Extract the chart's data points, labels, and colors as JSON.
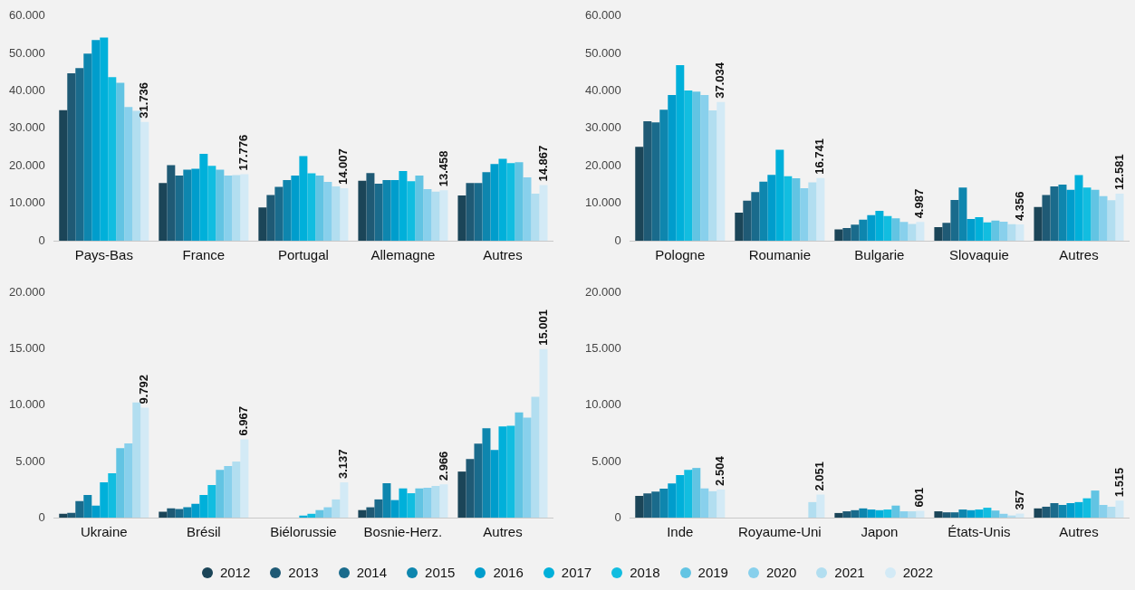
{
  "chart_data": [
    {
      "type": "bar",
      "categories": [
        "Pays-Bas",
        "France",
        "Portugal",
        "Allemagne",
        "Autres"
      ],
      "ylim": [
        0,
        60000
      ],
      "yticks": [
        {
          "value": 0,
          "label": "0"
        },
        {
          "value": 10000,
          "label": "10.000"
        },
        {
          "value": 20000,
          "label": "20.000"
        },
        {
          "value": 30000,
          "label": "30.000"
        },
        {
          "value": 40000,
          "label": "40.000"
        },
        {
          "value": 50000,
          "label": "50.000"
        },
        {
          "value": 60000,
          "label": "60.000"
        }
      ],
      "grid": false,
      "legend": "bottom",
      "series": [
        {
          "name": "2012",
          "color": "#1b4558",
          "values": [
            34900,
            15400,
            8900,
            16000,
            12100
          ]
        },
        {
          "name": "2013",
          "color": "#1f5a75",
          "values": [
            44700,
            20200,
            12200,
            18100,
            15400
          ]
        },
        {
          "name": "2014",
          "color": "#1a6b8c",
          "values": [
            46100,
            17400,
            14400,
            15200,
            15400
          ]
        },
        {
          "name": "2015",
          "color": "#0e86ae",
          "values": [
            50000,
            19000,
            16200,
            16200,
            18300
          ]
        },
        {
          "name": "2016",
          "color": "#009dcc",
          "values": [
            53600,
            19200,
            17400,
            16200,
            20500
          ]
        },
        {
          "name": "2017",
          "color": "#00b0da",
          "values": [
            54300,
            23200,
            22600,
            18600,
            21900
          ]
        },
        {
          "name": "2018",
          "color": "#12bde0",
          "values": [
            43700,
            20000,
            18000,
            15900,
            20700
          ]
        },
        {
          "name": "2019",
          "color": "#62c4e3",
          "values": [
            42200,
            19000,
            17400,
            17400,
            21000
          ]
        },
        {
          "name": "2020",
          "color": "#88d0ec",
          "values": [
            35700,
            17400,
            15700,
            13800,
            16900
          ]
        },
        {
          "name": "2021",
          "color": "#b2def0",
          "values": [
            34700,
            17500,
            14500,
            13100,
            12600
          ]
        },
        {
          "name": "2022",
          "color": "#d3eaf6",
          "values": [
            31736,
            17776,
            14007,
            13458,
            14867
          ],
          "value_labels": [
            "31.736",
            "17.776",
            "14.007",
            "13.458",
            "14.867"
          ]
        }
      ]
    },
    {
      "type": "bar",
      "categories": [
        "Pologne",
        "Roumanie",
        "Bulgarie",
        "Slovaquie",
        "Autres"
      ],
      "ylim": [
        0,
        60000
      ],
      "yticks": [
        {
          "value": 0,
          "label": "0"
        },
        {
          "value": 10000,
          "label": "10.000"
        },
        {
          "value": 20000,
          "label": "20.000"
        },
        {
          "value": 30000,
          "label": "30.000"
        },
        {
          "value": 40000,
          "label": "40.000"
        },
        {
          "value": 50000,
          "label": "50.000"
        },
        {
          "value": 60000,
          "label": "60.000"
        }
      ],
      "grid": false,
      "legend": "bottom",
      "series": [
        {
          "name": "2012",
          "color": "#1b4558",
          "values": [
            25100,
            7500,
            3000,
            3600,
            9000
          ]
        },
        {
          "name": "2013",
          "color": "#1f5a75",
          "values": [
            31900,
            10700,
            3400,
            4800,
            12200
          ]
        },
        {
          "name": "2014",
          "color": "#1a6b8c",
          "values": [
            31600,
            13000,
            4300,
            10900,
            14500
          ]
        },
        {
          "name": "2015",
          "color": "#0e86ae",
          "values": [
            35000,
            15800,
            5600,
            14200,
            15000
          ]
        },
        {
          "name": "2016",
          "color": "#009dcc",
          "values": [
            38900,
            17600,
            6800,
            5800,
            13600
          ]
        },
        {
          "name": "2017",
          "color": "#00b0da",
          "values": [
            46900,
            24300,
            8000,
            6300,
            17500
          ]
        },
        {
          "name": "2018",
          "color": "#12bde0",
          "values": [
            40100,
            17200,
            6600,
            4900,
            14200
          ]
        },
        {
          "name": "2019",
          "color": "#62c4e3",
          "values": [
            39800,
            16700,
            6000,
            5400,
            13600
          ]
        },
        {
          "name": "2020",
          "color": "#88d0ec",
          "values": [
            38900,
            14000,
            5000,
            5100,
            11900
          ]
        },
        {
          "name": "2021",
          "color": "#b2def0",
          "values": [
            34800,
            15600,
            4500,
            4400,
            10800
          ]
        },
        {
          "name": "2022",
          "color": "#d3eaf6",
          "values": [
            37034,
            16741,
            4987,
            4356,
            12581
          ],
          "value_labels": [
            "37.034",
            "16.741",
            "4.987",
            "4.356",
            "12.581"
          ]
        }
      ]
    },
    {
      "type": "bar",
      "categories": [
        "Ukraine",
        "Brésil",
        "Biélorussie",
        "Bosnie-Herz.",
        "Autres"
      ],
      "ylim": [
        0,
        20000
      ],
      "yticks": [
        {
          "value": 0,
          "label": "0"
        },
        {
          "value": 5000,
          "label": "5.000"
        },
        {
          "value": 10000,
          "label": "10.000"
        },
        {
          "value": 15000,
          "label": "15.000"
        },
        {
          "value": 20000,
          "label": "20.000"
        }
      ],
      "grid": false,
      "legend": "bottom",
      "series": [
        {
          "name": "2012",
          "color": "#1b4558",
          "values": [
            340,
            520,
            null,
            670,
            4100
          ]
        },
        {
          "name": "2013",
          "color": "#1f5a75",
          "values": [
            430,
            830,
            null,
            920,
            5210
          ]
        },
        {
          "name": "2014",
          "color": "#1a6b8c",
          "values": [
            1470,
            770,
            null,
            1620,
            6580
          ]
        },
        {
          "name": "2015",
          "color": "#0e86ae",
          "values": [
            2020,
            920,
            null,
            3060,
            7960
          ]
        },
        {
          "name": "2016",
          "color": "#009dcc",
          "values": [
            1070,
            1220,
            null,
            1560,
            6030
          ]
        },
        {
          "name": "2017",
          "color": "#00b0da",
          "values": [
            3150,
            2020,
            180,
            2600,
            8110
          ]
        },
        {
          "name": "2018",
          "color": "#12bde0",
          "values": [
            3950,
            2910,
            340,
            2170,
            8180
          ]
        },
        {
          "name": "2019",
          "color": "#62c4e3",
          "values": [
            6190,
            4260,
            670,
            2600,
            9370
          ]
        },
        {
          "name": "2020",
          "color": "#88d0ec",
          "values": [
            6610,
            4590,
            920,
            2660,
            8910
          ]
        },
        {
          "name": "2021",
          "color": "#b2def0",
          "values": [
            10260,
            4990,
            1620,
            2820,
            10750
          ]
        },
        {
          "name": "2022",
          "color": "#d3eaf6",
          "values": [
            9792,
            6967,
            3137,
            2966,
            15001
          ],
          "value_labels": [
            "9.792",
            "6.967",
            "3.137",
            "2.966",
            "15.001"
          ]
        }
      ]
    },
    {
      "type": "bar",
      "categories": [
        "Inde",
        "Royaume-Uni",
        "Japon",
        "États-Unis",
        "Autres"
      ],
      "ylim": [
        0,
        20000
      ],
      "yticks": [
        {
          "value": 0,
          "label": "0"
        },
        {
          "value": 5000,
          "label": "5.000"
        },
        {
          "value": 10000,
          "label": "10.000"
        },
        {
          "value": 15000,
          "label": "15.000"
        },
        {
          "value": 20000,
          "label": "20.000"
        }
      ],
      "grid": false,
      "legend": "bottom",
      "series": [
        {
          "name": "2012",
          "color": "#1b4558",
          "values": [
            1940,
            null,
            410,
            560,
            820
          ]
        },
        {
          "name": "2013",
          "color": "#1f5a75",
          "values": [
            2160,
            null,
            560,
            470,
            970
          ]
        },
        {
          "name": "2014",
          "color": "#1a6b8c",
          "values": [
            2320,
            null,
            660,
            470,
            1290
          ]
        },
        {
          "name": "2015",
          "color": "#0e86ae",
          "values": [
            2570,
            null,
            820,
            720,
            1130
          ]
        },
        {
          "name": "2016",
          "color": "#009dcc",
          "values": [
            3040,
            null,
            720,
            660,
            1290
          ]
        },
        {
          "name": "2017",
          "color": "#00b0da",
          "values": [
            3790,
            null,
            660,
            720,
            1380
          ]
        },
        {
          "name": "2018",
          "color": "#12bde0",
          "values": [
            4260,
            null,
            720,
            880,
            1720
          ]
        },
        {
          "name": "2019",
          "color": "#62c4e3",
          "values": [
            4420,
            null,
            1070,
            630,
            2410
          ]
        },
        {
          "name": "2020",
          "color": "#88d0ec",
          "values": [
            2600,
            null,
            560,
            340,
            1130
          ]
        },
        {
          "name": "2021",
          "color": "#b2def0",
          "values": [
            2350,
            1380,
            560,
            190,
            970
          ]
        },
        {
          "name": "2022",
          "color": "#d3eaf6",
          "values": [
            2504,
            2051,
            601,
            357,
            1515
          ],
          "value_labels": [
            "2.504",
            "2.051",
            "601",
            "357",
            "1.515"
          ]
        }
      ]
    }
  ]
}
